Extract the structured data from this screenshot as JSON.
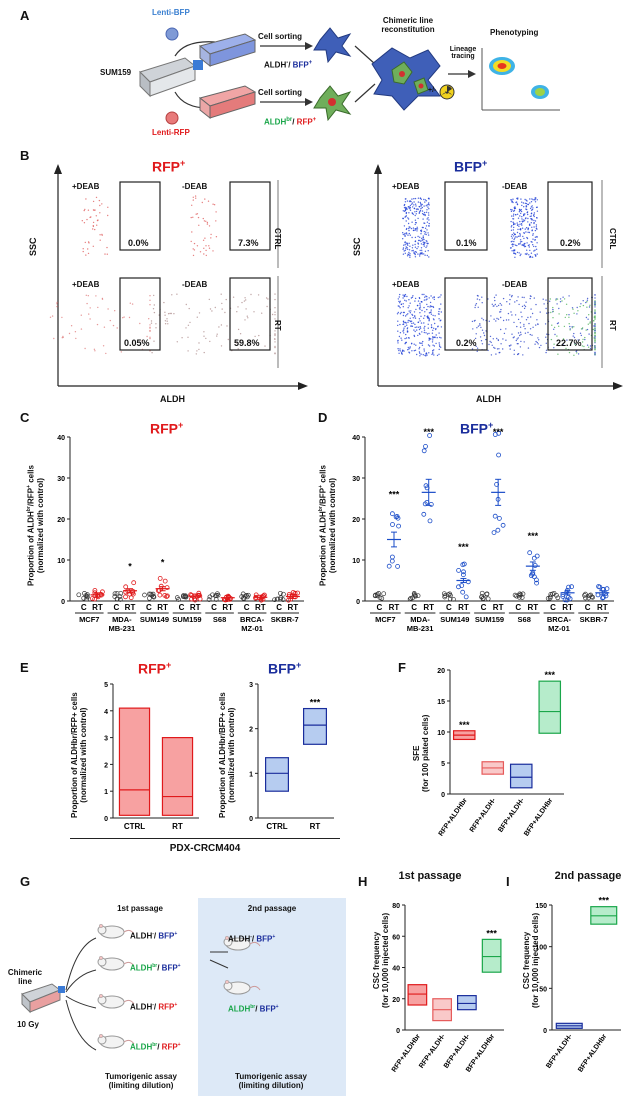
{
  "panels": {
    "A": {
      "letter": "A",
      "source": "SUM159",
      "lenti_bfp": "Lenti-BFP",
      "lenti_rfp": "Lenti-RFP",
      "cell_sorting_top": "Cell sorting",
      "cell_sorting_bottom": "Cell sorting",
      "label_top_prefix": "ALDH",
      "label_top_sup": "-",
      "label_top_sep": "/ ",
      "label_top_marker": "BFP",
      "label_top_marker_sup": "+",
      "label_bot_prefix": "ALDH",
      "label_bot_sup": "br",
      "label_bot_sep": "/ ",
      "label_bot_marker": "RFP",
      "label_bot_marker_sup": "+",
      "chimeric": "Chimeric line reconstitution",
      "lineage": "Lineage tracing",
      "plusminus": "+/-",
      "phenotyping": "Phenotyping"
    },
    "B": {
      "letter": "B",
      "rfp_title": "RFP",
      "bfp_title": "BFP",
      "sup_plus": "+",
      "ssc": "SSC",
      "aldh": "ALDH",
      "ctrl": "CTRL",
      "rt": "RT",
      "plus_deab": "+DEAB",
      "minus_deab": "-DEAB",
      "rfp_ctrl_plus": "0.0%",
      "rfp_ctrl_minus": "7.3%",
      "rfp_rt_plus": "0.05%",
      "rfp_rt_minus": "59.8%",
      "bfp_ctrl_plus": "0.1%",
      "bfp_ctrl_minus": "0.2%",
      "bfp_rt_plus": "0.2%",
      "bfp_rt_minus": "22.7%"
    },
    "C": {
      "letter": "C",
      "title": "RFP",
      "ylabel1": "Proportion of ALDH",
      "ylabel_sup": "br",
      "ylabel_mid": "/RFP",
      "ylabel_mid_sup": "+",
      "ylabel_end": " cells",
      "ylabel2": "(normalized with control)"
    },
    "D": {
      "letter": "D",
      "title": "BFP",
      "ylabel1": "Proportion of ALDH",
      "ylabel_sup": "br",
      "ylabel_mid": "/BFP",
      "ylabel_mid_sup": "+",
      "ylabel_end": " cells",
      "ylabel2": "(normalized with control)"
    },
    "E": {
      "letter": "E",
      "rfp_title": "RFP",
      "bfp_title": "BFP",
      "ylabel_rfp": "Proportion of ALDHbr/RFP+ cells",
      "ylabel_bfp": "Proportion of ALDHbr/BFP+ cells",
      "ylabel2": "(normalized with control)",
      "footer": "PDX-CRCM404"
    },
    "F": {
      "letter": "F",
      "ylabel1": "SFE",
      "ylabel2": "(for 100 plated cells)"
    },
    "G": {
      "letter": "G",
      "first_passage": "1st passage",
      "second_passage": "2nd passage",
      "chimeric": "Chimeric line",
      "dose": "10 Gy",
      "row1": "ALDH-/ BFP+",
      "row2": "ALDHbr/ BFP+",
      "row3": "ALDH-/ RFP+",
      "row4": "ALDHbr/ RFP+",
      "p2_row1": "ALDH-/ BFP+",
      "p2_row2": "ALDHbr/ BFP+",
      "assay1": "Tumorigenic assay",
      "assay2": "(limiting dilution)",
      "assay3": "Tumorigenic assay",
      "assay4": "(limiting dilution)"
    },
    "H": {
      "letter": "H",
      "title": "1st passage",
      "ylabel1": "CSC frequency",
      "ylabel2": "(for 10,000 injected cells)"
    },
    "I": {
      "letter": "I",
      "title": "2nd passage",
      "ylabel1": "CSC frequency",
      "ylabel2": "(for 10,000 injected cells)"
    }
  },
  "chart_data": [
    {
      "id": "C",
      "type": "scatter",
      "title": "RFP+",
      "ylabel": "Proportion of ALDHbr/RFP+ cells (normalized with control)",
      "ylim": [
        0,
        40
      ],
      "yticks": [
        0,
        10,
        20,
        30,
        40
      ],
      "categories": [
        "MCF7",
        "MDA-MB-231",
        "SUM149",
        "SUM159",
        "S68",
        "BRCA-MZ-01",
        "SKBR-7"
      ],
      "xticks": [
        "C",
        "RT"
      ],
      "series": [
        {
          "name": "C",
          "values": [
            1,
            1,
            1,
            1,
            1,
            1,
            1
          ]
        },
        {
          "name": "RT",
          "values": [
            1.5,
            2.5,
            3,
            1.2,
            0.8,
            0.9,
            1.1
          ]
        }
      ],
      "stars": [
        null,
        "*",
        "*",
        null,
        null,
        null,
        null
      ]
    },
    {
      "id": "D",
      "type": "scatter",
      "title": "BFP+",
      "ylabel": "Proportion of ALDHbr/BFP+ cells (normalized with control)",
      "ylim": [
        0,
        40
      ],
      "yticks": [
        0,
        10,
        20,
        30,
        40
      ],
      "categories": [
        "MCF7",
        "MDA-MB-231",
        "SUM149",
        "SUM159",
        "S68",
        "BRCA-MZ-01",
        "SKBR-7"
      ],
      "xticks": [
        "C",
        "RT"
      ],
      "series": [
        {
          "name": "C",
          "values": [
            1,
            1,
            1,
            1,
            1,
            1,
            1
          ]
        },
        {
          "name": "RT",
          "values": [
            15,
            26.5,
            5,
            26.5,
            8.5,
            2,
            2
          ]
        }
      ],
      "stars": [
        "***",
        "***",
        "***",
        "***",
        "***",
        null,
        null
      ]
    },
    {
      "id": "E-RFP",
      "type": "bar",
      "title": "RFP+",
      "ylim": [
        0,
        5
      ],
      "yticks": [
        0,
        1,
        2,
        3,
        4,
        5
      ],
      "categories": [
        "CTRL",
        "RT"
      ],
      "ranges": [
        [
          0.1,
          4.1
        ],
        [
          0.1,
          3.0
        ]
      ],
      "medians": [
        1.05,
        0.8
      ]
    },
    {
      "id": "E-BFP",
      "type": "bar",
      "title": "BFP+",
      "ylim": [
        0,
        3
      ],
      "yticks": [
        0,
        1,
        2,
        3
      ],
      "categories": [
        "CTRL",
        "RT"
      ],
      "ranges": [
        [
          0.6,
          1.35
        ],
        [
          1.65,
          2.45
        ]
      ],
      "medians": [
        1.0,
        2.08
      ],
      "stars": [
        null,
        "***"
      ]
    },
    {
      "id": "F",
      "type": "bar",
      "ylabel": "SFE (for 100 plated cells)",
      "ylim": [
        0,
        20
      ],
      "yticks": [
        0,
        5,
        10,
        15,
        20
      ],
      "categories": [
        "RFP+ALDHbr",
        "RFP+ALDH-",
        "BFP+ALDH-",
        "BFP+ALDHbr"
      ],
      "ranges": [
        [
          8.8,
          10.2
        ],
        [
          3.2,
          5.2
        ],
        [
          1.0,
          4.8
        ],
        [
          9.8,
          18.2
        ]
      ],
      "medians": [
        9.5,
        4.2,
        2.7,
        13.3
      ],
      "stars": [
        "***",
        null,
        null,
        "***"
      ]
    },
    {
      "id": "H",
      "type": "bar",
      "title": "1st passage",
      "ylabel": "CSC frequency (for 10,000 injected cells)",
      "ylim": [
        0,
        80
      ],
      "yticks": [
        0,
        20,
        40,
        60,
        80
      ],
      "categories": [
        "RFP+ALDHbr",
        "RFP+ALDH-",
        "BFP+ALDH-",
        "BFP+ALDHbr"
      ],
      "ranges": [
        [
          16,
          29
        ],
        [
          6,
          20
        ],
        [
          13,
          22
        ],
        [
          37,
          58
        ]
      ],
      "medians": [
        23,
        13,
        17,
        47
      ],
      "stars": [
        null,
        null,
        null,
        "***"
      ]
    },
    {
      "id": "I",
      "type": "bar",
      "title": "2nd passage",
      "ylabel": "CSC frequency (for 10,000 injected cells)",
      "ylim": [
        0,
        150
      ],
      "yticks": [
        0,
        50,
        100,
        150
      ],
      "categories": [
        "BFP+ALDH-",
        "BFP+ALDHbr"
      ],
      "ranges": [
        [
          2,
          8
        ],
        [
          127,
          148
        ]
      ],
      "medians": [
        5,
        137
      ],
      "stars": [
        null,
        "***"
      ]
    }
  ]
}
